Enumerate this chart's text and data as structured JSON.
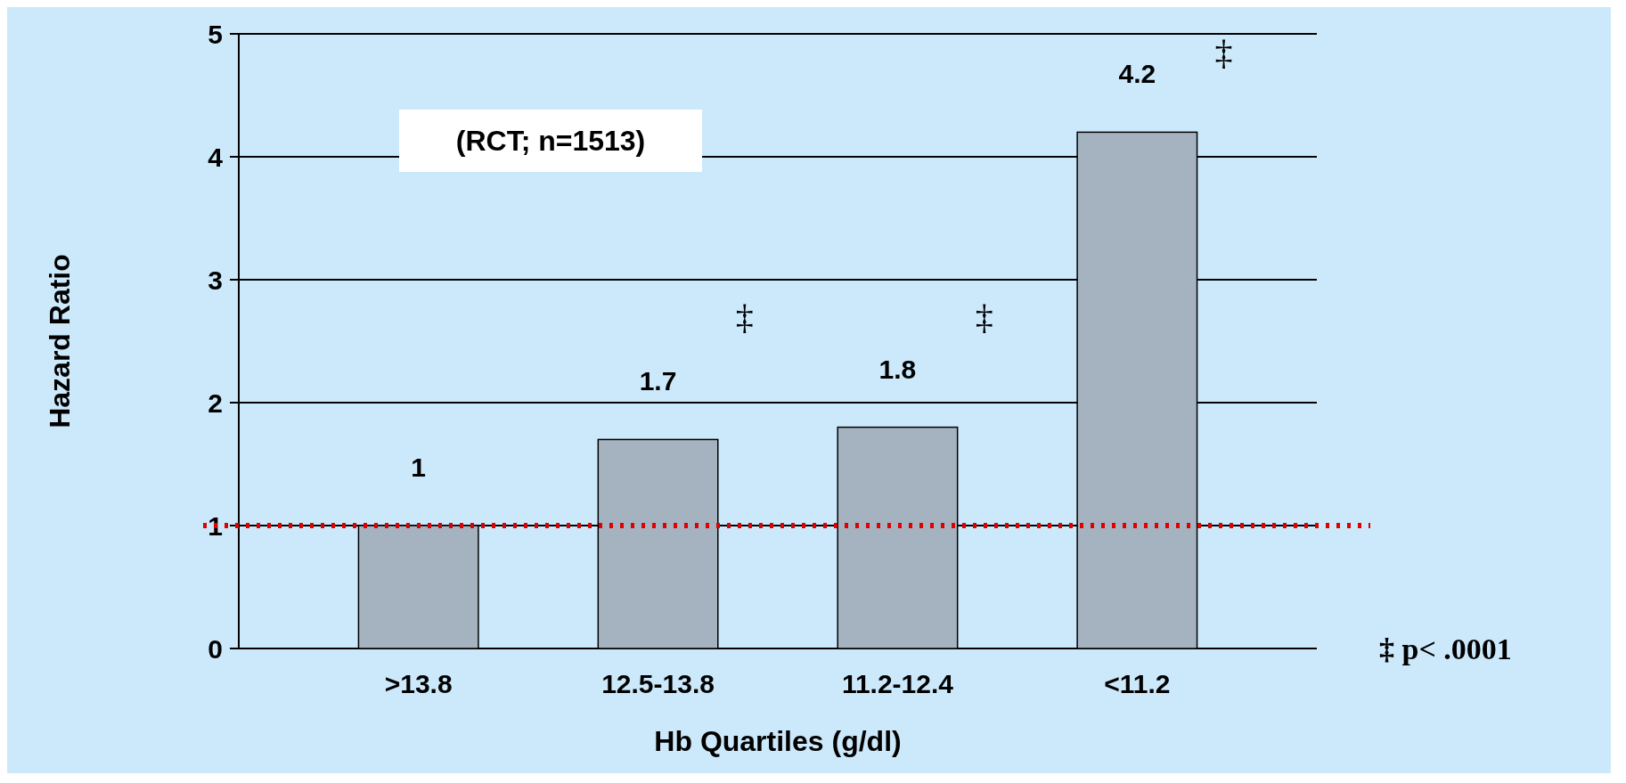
{
  "chart_data": {
    "type": "bar",
    "xlabel": "Hb Quartiles (g/dl)",
    "ylabel": "Hazard Ratio",
    "categories": [
      ">13.8",
      "12.5-13.8",
      "11.2-12.4",
      "<11.2"
    ],
    "values": [
      1,
      1.7,
      1.8,
      4.2
    ],
    "color": "#a5b3c1",
    "ylim": [
      0,
      5
    ],
    "yticks": [
      0,
      1,
      2,
      3,
      4,
      5
    ],
    "grid": "y",
    "data_labels": true,
    "ref_lines": [
      {
        "axis": "y",
        "value": 1,
        "color": "#e00000",
        "line_style": "dotted"
      }
    ],
    "annotations": [
      "(RCT; n=1513)",
      "‡",
      "‡",
      "‡",
      "‡ p< .0001"
    ]
  }
}
